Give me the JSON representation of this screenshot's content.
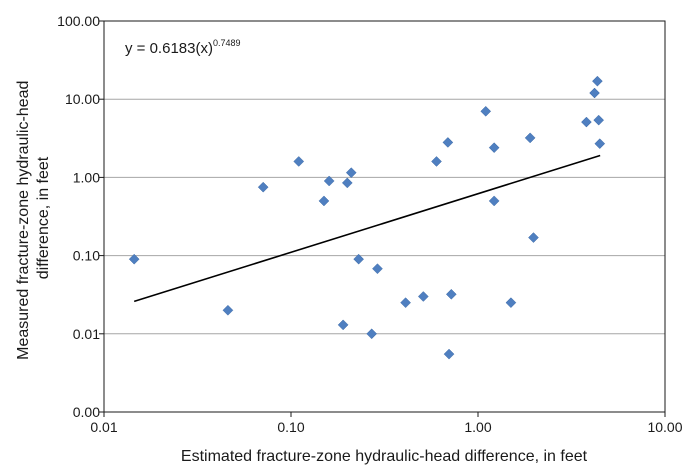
{
  "chart_data": {
    "type": "scatter",
    "xlabel": "Estimated fracture-zone hydraulic-head difference, in feet",
    "ylabel_lines": [
      "Measured fracture-zone hydraulic-head",
      "difference, in feet"
    ],
    "x_scale": "log",
    "y_scale": "log",
    "xlim": [
      0.01,
      10
    ],
    "ylim": [
      0.001,
      100
    ],
    "x_ticks": [
      0.01,
      0.1,
      1,
      10
    ],
    "x_tick_labels": [
      "0.01",
      "0.10",
      "1.00",
      "10.00"
    ],
    "y_ticks": [
      0.001,
      0.01,
      0.1,
      1,
      10,
      100
    ],
    "y_tick_labels": [
      "0.00",
      "0.01",
      "0.10",
      "1.00",
      "10.00",
      "100.00"
    ],
    "grid": "horizontal",
    "marker_color": "#4f7fc0",
    "line_color": "#000000",
    "equation": {
      "base": "y = 0.6183(x)",
      "exponent": "0.7489"
    },
    "trendline": {
      "coefficient": 0.6183,
      "exponent": 0.7489,
      "x_start": 0.0145,
      "x_end": 4.5
    },
    "points": [
      {
        "x": 0.0145,
        "y": 0.09
      },
      {
        "x": 0.046,
        "y": 0.02
      },
      {
        "x": 0.071,
        "y": 0.75
      },
      {
        "x": 0.11,
        "y": 1.6
      },
      {
        "x": 0.15,
        "y": 0.5
      },
      {
        "x": 0.16,
        "y": 0.9
      },
      {
        "x": 0.19,
        "y": 0.013
      },
      {
        "x": 0.2,
        "y": 0.85
      },
      {
        "x": 0.21,
        "y": 1.15
      },
      {
        "x": 0.23,
        "y": 0.09
      },
      {
        "x": 0.27,
        "y": 0.01
      },
      {
        "x": 0.29,
        "y": 0.068
      },
      {
        "x": 0.41,
        "y": 0.025
      },
      {
        "x": 0.51,
        "y": 0.03
      },
      {
        "x": 0.6,
        "y": 1.6
      },
      {
        "x": 0.69,
        "y": 2.8
      },
      {
        "x": 0.7,
        "y": 0.0055
      },
      {
        "x": 0.72,
        "y": 0.032
      },
      {
        "x": 1.1,
        "y": 7.0
      },
      {
        "x": 1.22,
        "y": 2.4
      },
      {
        "x": 1.22,
        "y": 0.5
      },
      {
        "x": 1.5,
        "y": 0.025
      },
      {
        "x": 1.9,
        "y": 3.2
      },
      {
        "x": 1.98,
        "y": 0.17
      },
      {
        "x": 3.8,
        "y": 5.1
      },
      {
        "x": 4.2,
        "y": 12.0
      },
      {
        "x": 4.35,
        "y": 17.0
      },
      {
        "x": 4.42,
        "y": 5.4
      },
      {
        "x": 4.48,
        "y": 2.7
      }
    ]
  }
}
